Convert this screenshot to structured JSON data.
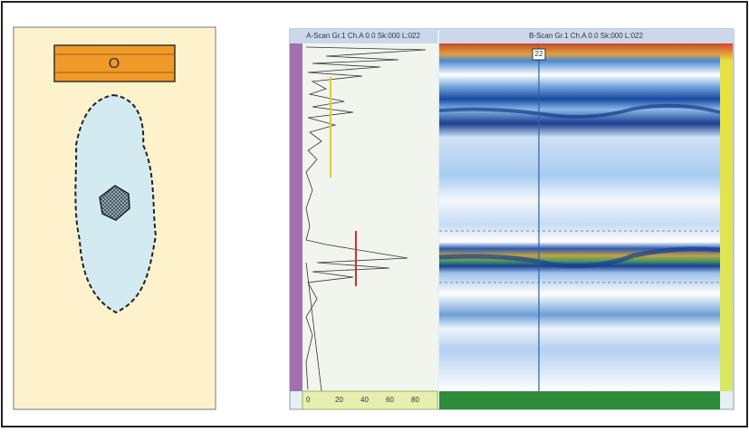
{
  "diagram": {
    "marker": "O"
  },
  "ascan": {
    "title": "A-Scan Gr.1 Ch.A 0.0 Sk:000 L:022",
    "ticks": [
      "0",
      "20",
      "40",
      "60",
      "80"
    ]
  },
  "bscan": {
    "title": "B-Scan Gr.1 Ch.A 0.0 Sk:000 L:022",
    "cursor": "22"
  }
}
